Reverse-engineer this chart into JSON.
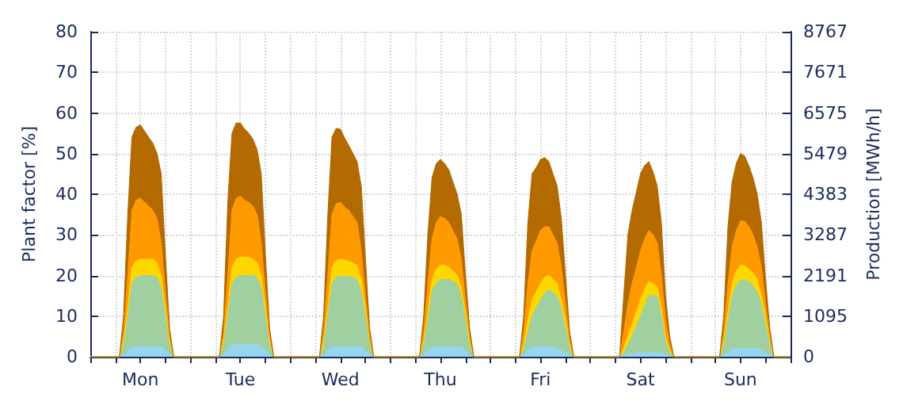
{
  "chart_data": {
    "type": "area",
    "stacked": true,
    "ylabel": "Plant factor [%]",
    "y2label": "Production [MWh/h]",
    "categories": [
      null,
      null,
      null,
      null,
      null,
      null,
      null,
      null,
      null,
      null,
      null,
      null,
      "Mon",
      null,
      null,
      null,
      null,
      null,
      null,
      null,
      null,
      null,
      null,
      null,
      null,
      null,
      null,
      null,
      null,
      null,
      null,
      null,
      null,
      null,
      null,
      null,
      "Tue",
      null,
      null,
      null,
      null,
      null,
      null,
      null,
      null,
      null,
      null,
      null,
      null,
      null,
      null,
      null,
      null,
      null,
      null,
      null,
      null,
      null,
      null,
      null,
      "Wed",
      null,
      null,
      null,
      null,
      null,
      null,
      null,
      null,
      null,
      null,
      null,
      null,
      null,
      null,
      null,
      null,
      null,
      null,
      null,
      null,
      null,
      null,
      null,
      "Thu",
      null,
      null,
      null,
      null,
      null,
      null,
      null,
      null,
      null,
      null,
      null,
      null,
      null,
      null,
      null,
      null,
      null,
      null,
      null,
      null,
      null,
      null,
      null,
      "Fri",
      null,
      null,
      null,
      null,
      null,
      null,
      null,
      null,
      null,
      null,
      null,
      null,
      null,
      null,
      null,
      null,
      null,
      null,
      null,
      null,
      null,
      null,
      null,
      "Sat",
      null,
      null,
      null,
      null,
      null,
      null,
      null,
      null,
      null,
      null,
      null,
      null,
      null,
      null,
      null,
      null,
      null,
      null,
      null,
      null,
      null,
      null,
      null,
      "Sun",
      null,
      null,
      null,
      null,
      null,
      null,
      null,
      null,
      null,
      null,
      null,
      null
    ],
    "series": [
      {
        "color": "#95d5ee",
        "values": [
          0,
          0,
          0,
          0,
          0,
          0,
          0,
          0,
          0.5,
          1.5,
          2.5,
          2.5,
          2.5,
          2.5,
          2.5,
          2.5,
          2.5,
          2.5,
          1.5,
          0.5,
          0,
          0,
          0,
          0,
          0,
          0,
          0,
          0,
          0,
          0,
          0,
          0,
          0.5,
          1.5,
          3,
          3,
          3,
          3,
          3,
          3,
          3,
          2.5,
          1.5,
          0.5,
          0,
          0,
          0,
          0,
          0,
          0,
          0,
          0,
          0,
          0,
          0,
          0,
          0.5,
          1.5,
          2.5,
          2.5,
          2.5,
          2.5,
          2.5,
          2.5,
          2.5,
          2.5,
          1.5,
          0.5,
          0,
          0,
          0,
          0,
          0,
          0,
          0,
          0,
          0,
          0,
          0,
          0,
          0.5,
          1.5,
          2.5,
          2.5,
          2.5,
          2.5,
          2.5,
          2.5,
          2.5,
          2.5,
          1.5,
          0.5,
          0,
          0,
          0,
          0,
          0,
          0,
          0,
          0,
          0,
          0,
          0,
          0,
          0.5,
          1.5,
          2.5,
          2.5,
          2.5,
          2.5,
          2.5,
          2.3,
          2,
          1.5,
          1,
          0.3,
          0,
          0,
          0,
          0,
          0,
          0,
          0,
          0,
          0,
          0,
          0,
          0,
          0.2,
          0.5,
          0.8,
          0.9,
          1,
          1,
          1,
          1,
          1,
          0.8,
          0.5,
          0.2,
          0,
          0,
          0,
          0,
          0,
          0,
          0,
          0,
          0,
          0,
          0,
          0,
          0.4,
          1,
          2,
          2,
          2,
          2,
          2,
          2,
          2,
          1.5,
          1,
          0.3,
          0,
          0,
          0,
          0,
          0
        ]
      },
      {
        "color": "#a0cfa0",
        "values": [
          0,
          0,
          0,
          0,
          0,
          0,
          0,
          0,
          2.5,
          8.5,
          15.5,
          17,
          17.5,
          17.5,
          17.5,
          17.5,
          17,
          14.5,
          8.5,
          2.5,
          0,
          0,
          0,
          0,
          0,
          0,
          0,
          0,
          0,
          0,
          0,
          0,
          2.5,
          8.5,
          15,
          16.5,
          17,
          17,
          17,
          17,
          16.5,
          14.5,
          8.5,
          2.5,
          0,
          0,
          0,
          0,
          0,
          0,
          0,
          0,
          0,
          0,
          0,
          0,
          2.5,
          8.5,
          15.5,
          17,
          17.3,
          17.3,
          17.3,
          17,
          16.5,
          13.5,
          8.5,
          2.5,
          0,
          0,
          0,
          0,
          0,
          0,
          0,
          0,
          0,
          0,
          0,
          0,
          2.5,
          7.5,
          13.5,
          15.5,
          16.5,
          16.5,
          16.5,
          16,
          15.5,
          12.5,
          7.5,
          2.5,
          0,
          0,
          0,
          0,
          0,
          0,
          0,
          0,
          0,
          0,
          0,
          0,
          1.5,
          4.5,
          7.5,
          9.5,
          11.5,
          13,
          14,
          13.5,
          13,
          10.5,
          6,
          1.7,
          0,
          0,
          0,
          0,
          0,
          0,
          0,
          0,
          0,
          0,
          0,
          0,
          0.8,
          2.5,
          4.2,
          6.5,
          9,
          11.5,
          14,
          14,
          14,
          9.2,
          3.5,
          0.8,
          0,
          0,
          0,
          0,
          0,
          0,
          0,
          0,
          0,
          0,
          0,
          0,
          2.6,
          8,
          13,
          15.5,
          16.8,
          16.8,
          16.5,
          15.5,
          14,
          11.5,
          7,
          2.7,
          0,
          0,
          0,
          0,
          0
        ]
      },
      {
        "color": "#ffd700",
        "values": [
          0,
          0,
          0,
          0,
          0,
          0,
          0,
          0,
          1,
          2,
          4,
          4,
          4,
          4,
          4,
          4,
          3.5,
          3,
          2,
          1,
          0,
          0,
          0,
          0,
          0,
          0,
          0,
          0,
          0,
          0,
          0,
          0,
          1,
          2,
          4,
          4.5,
          4.5,
          4.5,
          4.5,
          4,
          3.5,
          3,
          2,
          1,
          0,
          0,
          0,
          0,
          0,
          0,
          0,
          0,
          0,
          0,
          0,
          0,
          1,
          2,
          4,
          4.2,
          4.2,
          4,
          3.7,
          3.5,
          3.5,
          3,
          2,
          1,
          0,
          0,
          0,
          0,
          0,
          0,
          0,
          0,
          0,
          0,
          0,
          0,
          1,
          2,
          3,
          3.5,
          3.5,
          3.5,
          3,
          2.5,
          2,
          2,
          2,
          1,
          0,
          0,
          0,
          0,
          0,
          0,
          0,
          0,
          0,
          0,
          0,
          0,
          1,
          3,
          4,
          4,
          4,
          4,
          3.5,
          3.2,
          3,
          2,
          2,
          1,
          0,
          0,
          0,
          0,
          0,
          0,
          0,
          0,
          0,
          0,
          0,
          0,
          1,
          2,
          3,
          3.5,
          4,
          4,
          3.5,
          3,
          2,
          2,
          1,
          0.5,
          0,
          0,
          0,
          0,
          0,
          0,
          0,
          0,
          0,
          0,
          0,
          0,
          1,
          2,
          3,
          3.5,
          3.7,
          3.5,
          3,
          3,
          3,
          2,
          2,
          1,
          0,
          0,
          0,
          0,
          0
        ]
      },
      {
        "color": "#ff9900",
        "values": [
          0,
          0,
          0,
          0,
          0,
          0,
          0,
          0,
          2,
          8,
          14,
          15,
          15,
          14,
          13,
          12,
          11,
          8,
          4,
          1,
          0,
          0,
          0,
          0,
          0,
          0,
          0,
          0,
          0,
          0,
          0,
          0,
          2,
          8,
          14,
          15,
          15,
          14,
          13.5,
          13,
          12,
          8,
          4,
          1,
          0,
          0,
          0,
          0,
          0,
          0,
          0,
          0,
          0,
          0,
          0,
          0,
          2,
          8,
          13,
          14,
          14,
          13,
          12.5,
          11.5,
          10.5,
          7,
          3,
          1,
          0,
          0,
          0,
          0,
          0,
          0,
          0,
          0,
          0,
          0,
          0,
          0,
          2,
          7,
          10,
          11.5,
          12,
          11.5,
          11,
          10,
          9,
          7,
          3,
          1,
          0,
          0,
          0,
          0,
          0,
          0,
          0,
          0,
          0,
          0,
          0,
          0,
          3,
          9,
          12,
          12.5,
          13,
          12.5,
          12,
          11,
          10,
          8,
          4,
          1,
          0,
          0,
          0,
          0,
          0,
          0,
          0,
          0,
          0,
          0,
          0,
          0,
          4,
          8,
          10,
          11,
          12,
          12.5,
          12.5,
          12,
          11,
          8,
          4,
          1.5,
          0,
          0,
          0,
          0,
          0,
          0,
          0,
          0,
          0,
          0,
          0,
          0,
          2,
          7,
          9,
          10,
          11,
          11,
          10.5,
          9.5,
          8,
          7,
          3,
          1,
          0,
          0,
          0,
          0,
          0
        ]
      },
      {
        "color": "#b36a00",
        "values": [
          0,
          0,
          0,
          0,
          0,
          0,
          0,
          0,
          4,
          15,
          18,
          18,
          18,
          17.5,
          17,
          16.5,
          16,
          17,
          9,
          2,
          0,
          0,
          0,
          0,
          0,
          0,
          0,
          0,
          0,
          0,
          0,
          0,
          4,
          18,
          19,
          18.5,
          18,
          17.5,
          17,
          16.5,
          16,
          17,
          9,
          2,
          0,
          0,
          0,
          0,
          0,
          0,
          0,
          0,
          0,
          0,
          0,
          0,
          4,
          15,
          19,
          18.5,
          18,
          17,
          16,
          15.5,
          15,
          16,
          9,
          2,
          0,
          0,
          0,
          0,
          0,
          0,
          0,
          0,
          0,
          0,
          0,
          0,
          4,
          12,
          15,
          14.5,
          14,
          13.5,
          13,
          12,
          11,
          11,
          6,
          2,
          0,
          0,
          0,
          0,
          0,
          0,
          0,
          0,
          0,
          0,
          0,
          0,
          4,
          15,
          19,
          18,
          17.5,
          17,
          16,
          15,
          14,
          12,
          7,
          2,
          0,
          0,
          0,
          0,
          0,
          0,
          0,
          0,
          0,
          0,
          0,
          0,
          9,
          17,
          18,
          18.5,
          19,
          18,
          17,
          15.5,
          14,
          13,
          6,
          2,
          0,
          0,
          0,
          0,
          0,
          0,
          0,
          0,
          0,
          0,
          0,
          0,
          4,
          14,
          16,
          16.5,
          16.5,
          16,
          15,
          14,
          13,
          11,
          6,
          2,
          0,
          0,
          0,
          0,
          0
        ]
      }
    ],
    "ylim": [
      0,
      80
    ],
    "yticks": [
      0,
      10,
      20,
      30,
      40,
      50,
      60,
      70,
      80
    ],
    "y2lim": [
      0,
      8767
    ],
    "y2ticks": [
      0,
      1095,
      2191,
      3287,
      4383,
      5479,
      6575,
      7671,
      8767
    ],
    "grid": true,
    "marker": "none"
  }
}
